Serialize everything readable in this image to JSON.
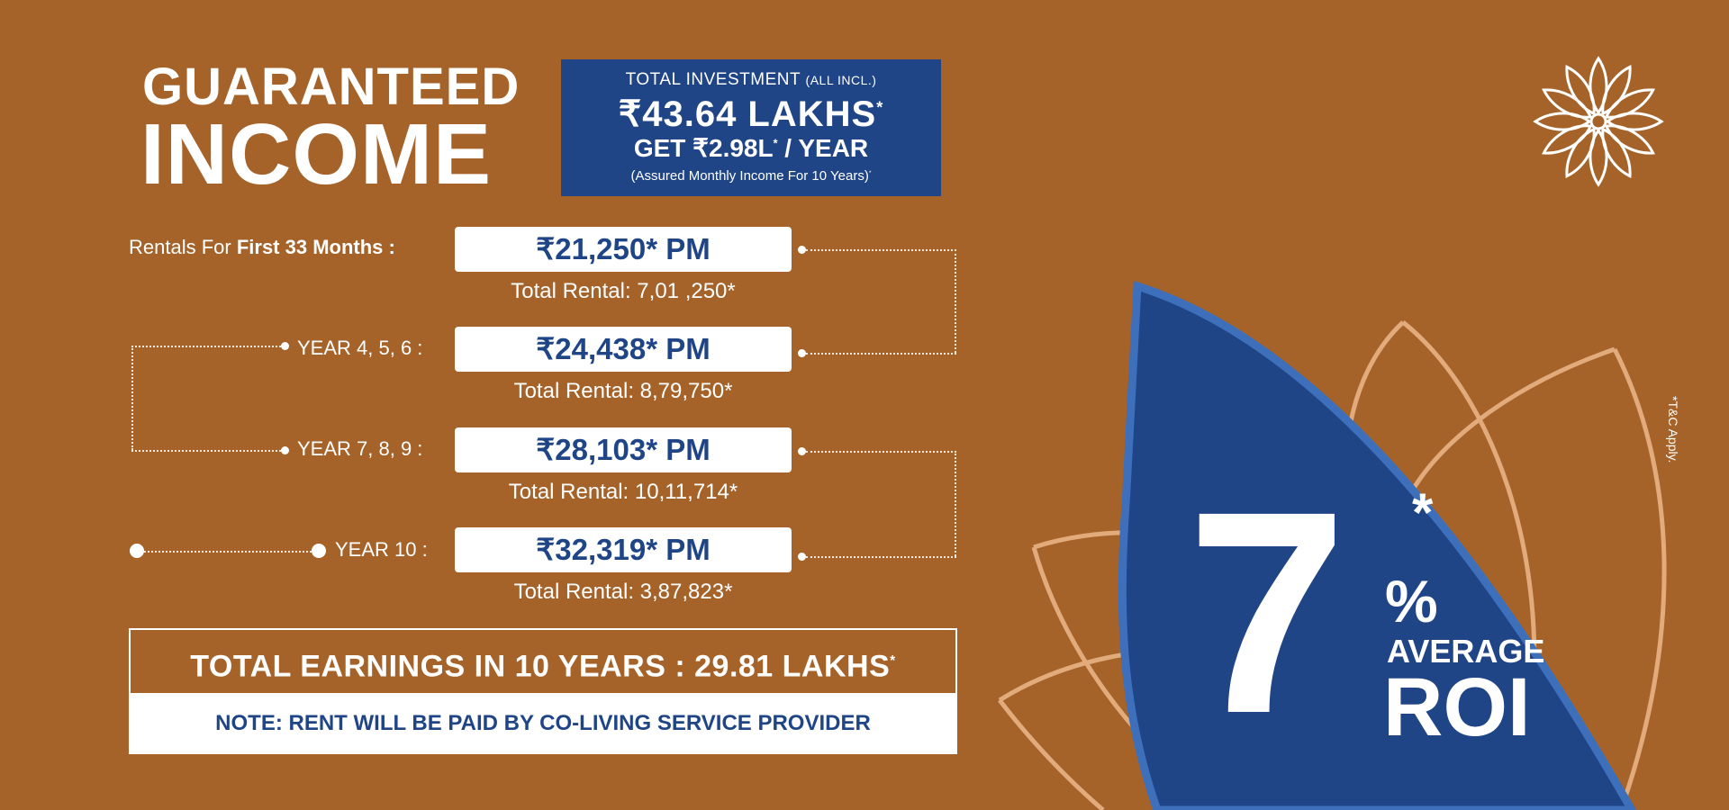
{
  "headline": {
    "line1": "GUARANTEED",
    "line2": "INCOME"
  },
  "investment": {
    "label": "TOTAL INVESTMENT",
    "label_note": "(ALL INCL.)",
    "amount": "₹43.64 LAKHS",
    "yearly": "GET ₹2.98L",
    "yearly_suffix": "/ YEAR",
    "note": "(Assured Monthly Income For 10 Years)",
    "asterisk": "*"
  },
  "rentals": [
    {
      "label_prefix": "Rentals For ",
      "label_bold": "First 33 Months :",
      "monthly": "₹21,250* PM",
      "total": "Total Rental: 7,01 ,250*"
    },
    {
      "label": "YEAR 4, 5, 6 :",
      "monthly": "₹24,438* PM",
      "total": "Total Rental: 8,79,750*"
    },
    {
      "label": "YEAR 7, 8, 9 :",
      "monthly": "₹28,103* PM",
      "total": "Total Rental: 10,11,714*"
    },
    {
      "label": "YEAR 10 :",
      "monthly": "₹32,319* PM",
      "total": "Total Rental: 3,87,823*"
    }
  ],
  "earnings": {
    "total": "TOTAL EARNINGS IN 10 YEARS : 29.81 LAKHS",
    "asterisk": "*",
    "note": "NOTE: RENT WILL BE PAID BY CO-LIVING SERVICE PROVIDER"
  },
  "roi": {
    "number": "7",
    "asterisk": "*",
    "percent": "%",
    "average": "AVERAGE",
    "label": "ROI"
  },
  "disclaimer": "*T&C Apply.",
  "colors": {
    "background": "#a5632a",
    "navy": "#1f4587",
    "leaf_outline": "#e2ab7c"
  },
  "icons": {
    "logo": "lotus-mandala-icon"
  }
}
